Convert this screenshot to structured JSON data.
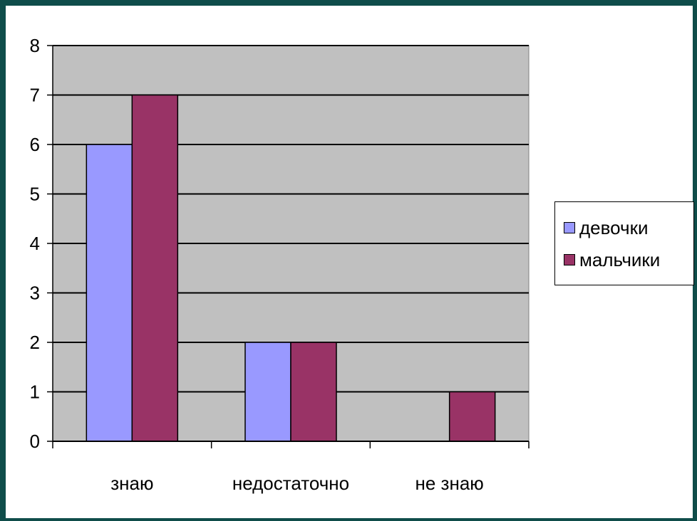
{
  "chart_data": {
    "type": "bar",
    "categories": [
      "знаю",
      "недостаточно",
      "не знаю"
    ],
    "series": [
      {
        "name": "девочки",
        "values": [
          6,
          2,
          0
        ],
        "color": "#9999ff"
      },
      {
        "name": "мальчики",
        "values": [
          7,
          2,
          1
        ],
        "color": "#993366"
      }
    ],
    "ylim": [
      0,
      8
    ],
    "yticks": [
      "0",
      "1",
      "2",
      "3",
      "4",
      "5",
      "6",
      "7",
      "8"
    ],
    "grid": true,
    "legend_position": "right",
    "plot_background": "#c0c0c0"
  }
}
